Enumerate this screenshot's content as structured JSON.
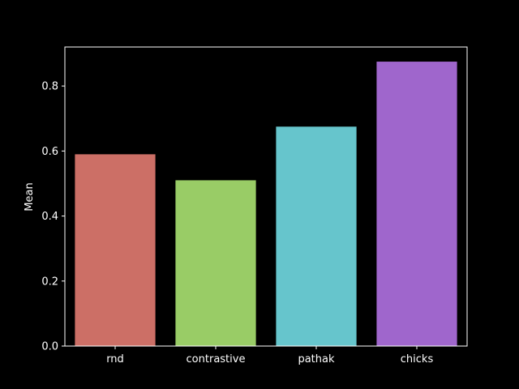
{
  "chart_data": {
    "type": "bar",
    "categories": [
      "rnd",
      "contrastive",
      "pathak",
      "chicks"
    ],
    "values": [
      0.59,
      0.51,
      0.675,
      0.875
    ],
    "colors": [
      "#cc6f66",
      "#99cc66",
      "#66c5cc",
      "#9f66cc"
    ],
    "title": "",
    "xlabel": "",
    "ylabel": "Mean",
    "ylim": [
      0,
      0.92
    ],
    "yticks": [
      0.0,
      0.2,
      0.4,
      0.6,
      0.8
    ],
    "ytick_labels": [
      "0.0",
      "0.2",
      "0.4",
      "0.6",
      "0.8"
    ],
    "grid": false,
    "background": "#000000",
    "axis_color": "#ffffff"
  }
}
